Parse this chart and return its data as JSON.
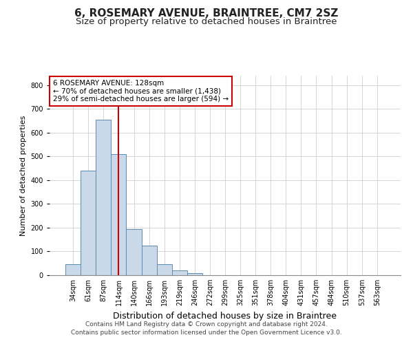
{
  "title1": "6, ROSEMARY AVENUE, BRAINTREE, CM7 2SZ",
  "title2": "Size of property relative to detached houses in Braintree",
  "xlabel": "Distribution of detached houses by size in Braintree",
  "ylabel": "Number of detached properties",
  "categories": [
    "34sqm",
    "61sqm",
    "87sqm",
    "114sqm",
    "140sqm",
    "166sqm",
    "193sqm",
    "219sqm",
    "246sqm",
    "272sqm",
    "299sqm",
    "325sqm",
    "351sqm",
    "378sqm",
    "404sqm",
    "431sqm",
    "457sqm",
    "484sqm",
    "510sqm",
    "537sqm",
    "563sqm"
  ],
  "values": [
    45,
    440,
    655,
    510,
    193,
    125,
    45,
    20,
    8,
    0,
    0,
    0,
    0,
    0,
    0,
    0,
    0,
    0,
    0,
    0,
    0
  ],
  "bar_color": "#c9d9ea",
  "bar_edge_color": "#5a8ab0",
  "property_bin_index": 3,
  "annotation_line1": "6 ROSEMARY AVENUE: 128sqm",
  "annotation_line2": "← 70% of detached houses are smaller (1,438)",
  "annotation_line3": "29% of semi-detached houses are larger (594) →",
  "ylim": [
    0,
    840
  ],
  "yticks": [
    0,
    100,
    200,
    300,
    400,
    500,
    600,
    700,
    800
  ],
  "footnote1": "Contains HM Land Registry data © Crown copyright and database right 2024.",
  "footnote2": "Contains public sector information licensed under the Open Government Licence v3.0.",
  "grid_color": "#d0d0d0",
  "annotation_box_color": "#ffffff",
  "annotation_box_edge": "#cc0000",
  "vline_color": "#cc0000",
  "title1_fontsize": 11,
  "title2_fontsize": 9.5,
  "xlabel_fontsize": 9,
  "ylabel_fontsize": 8,
  "tick_fontsize": 7,
  "annotation_fontsize": 7.5,
  "footnote_fontsize": 6.5
}
